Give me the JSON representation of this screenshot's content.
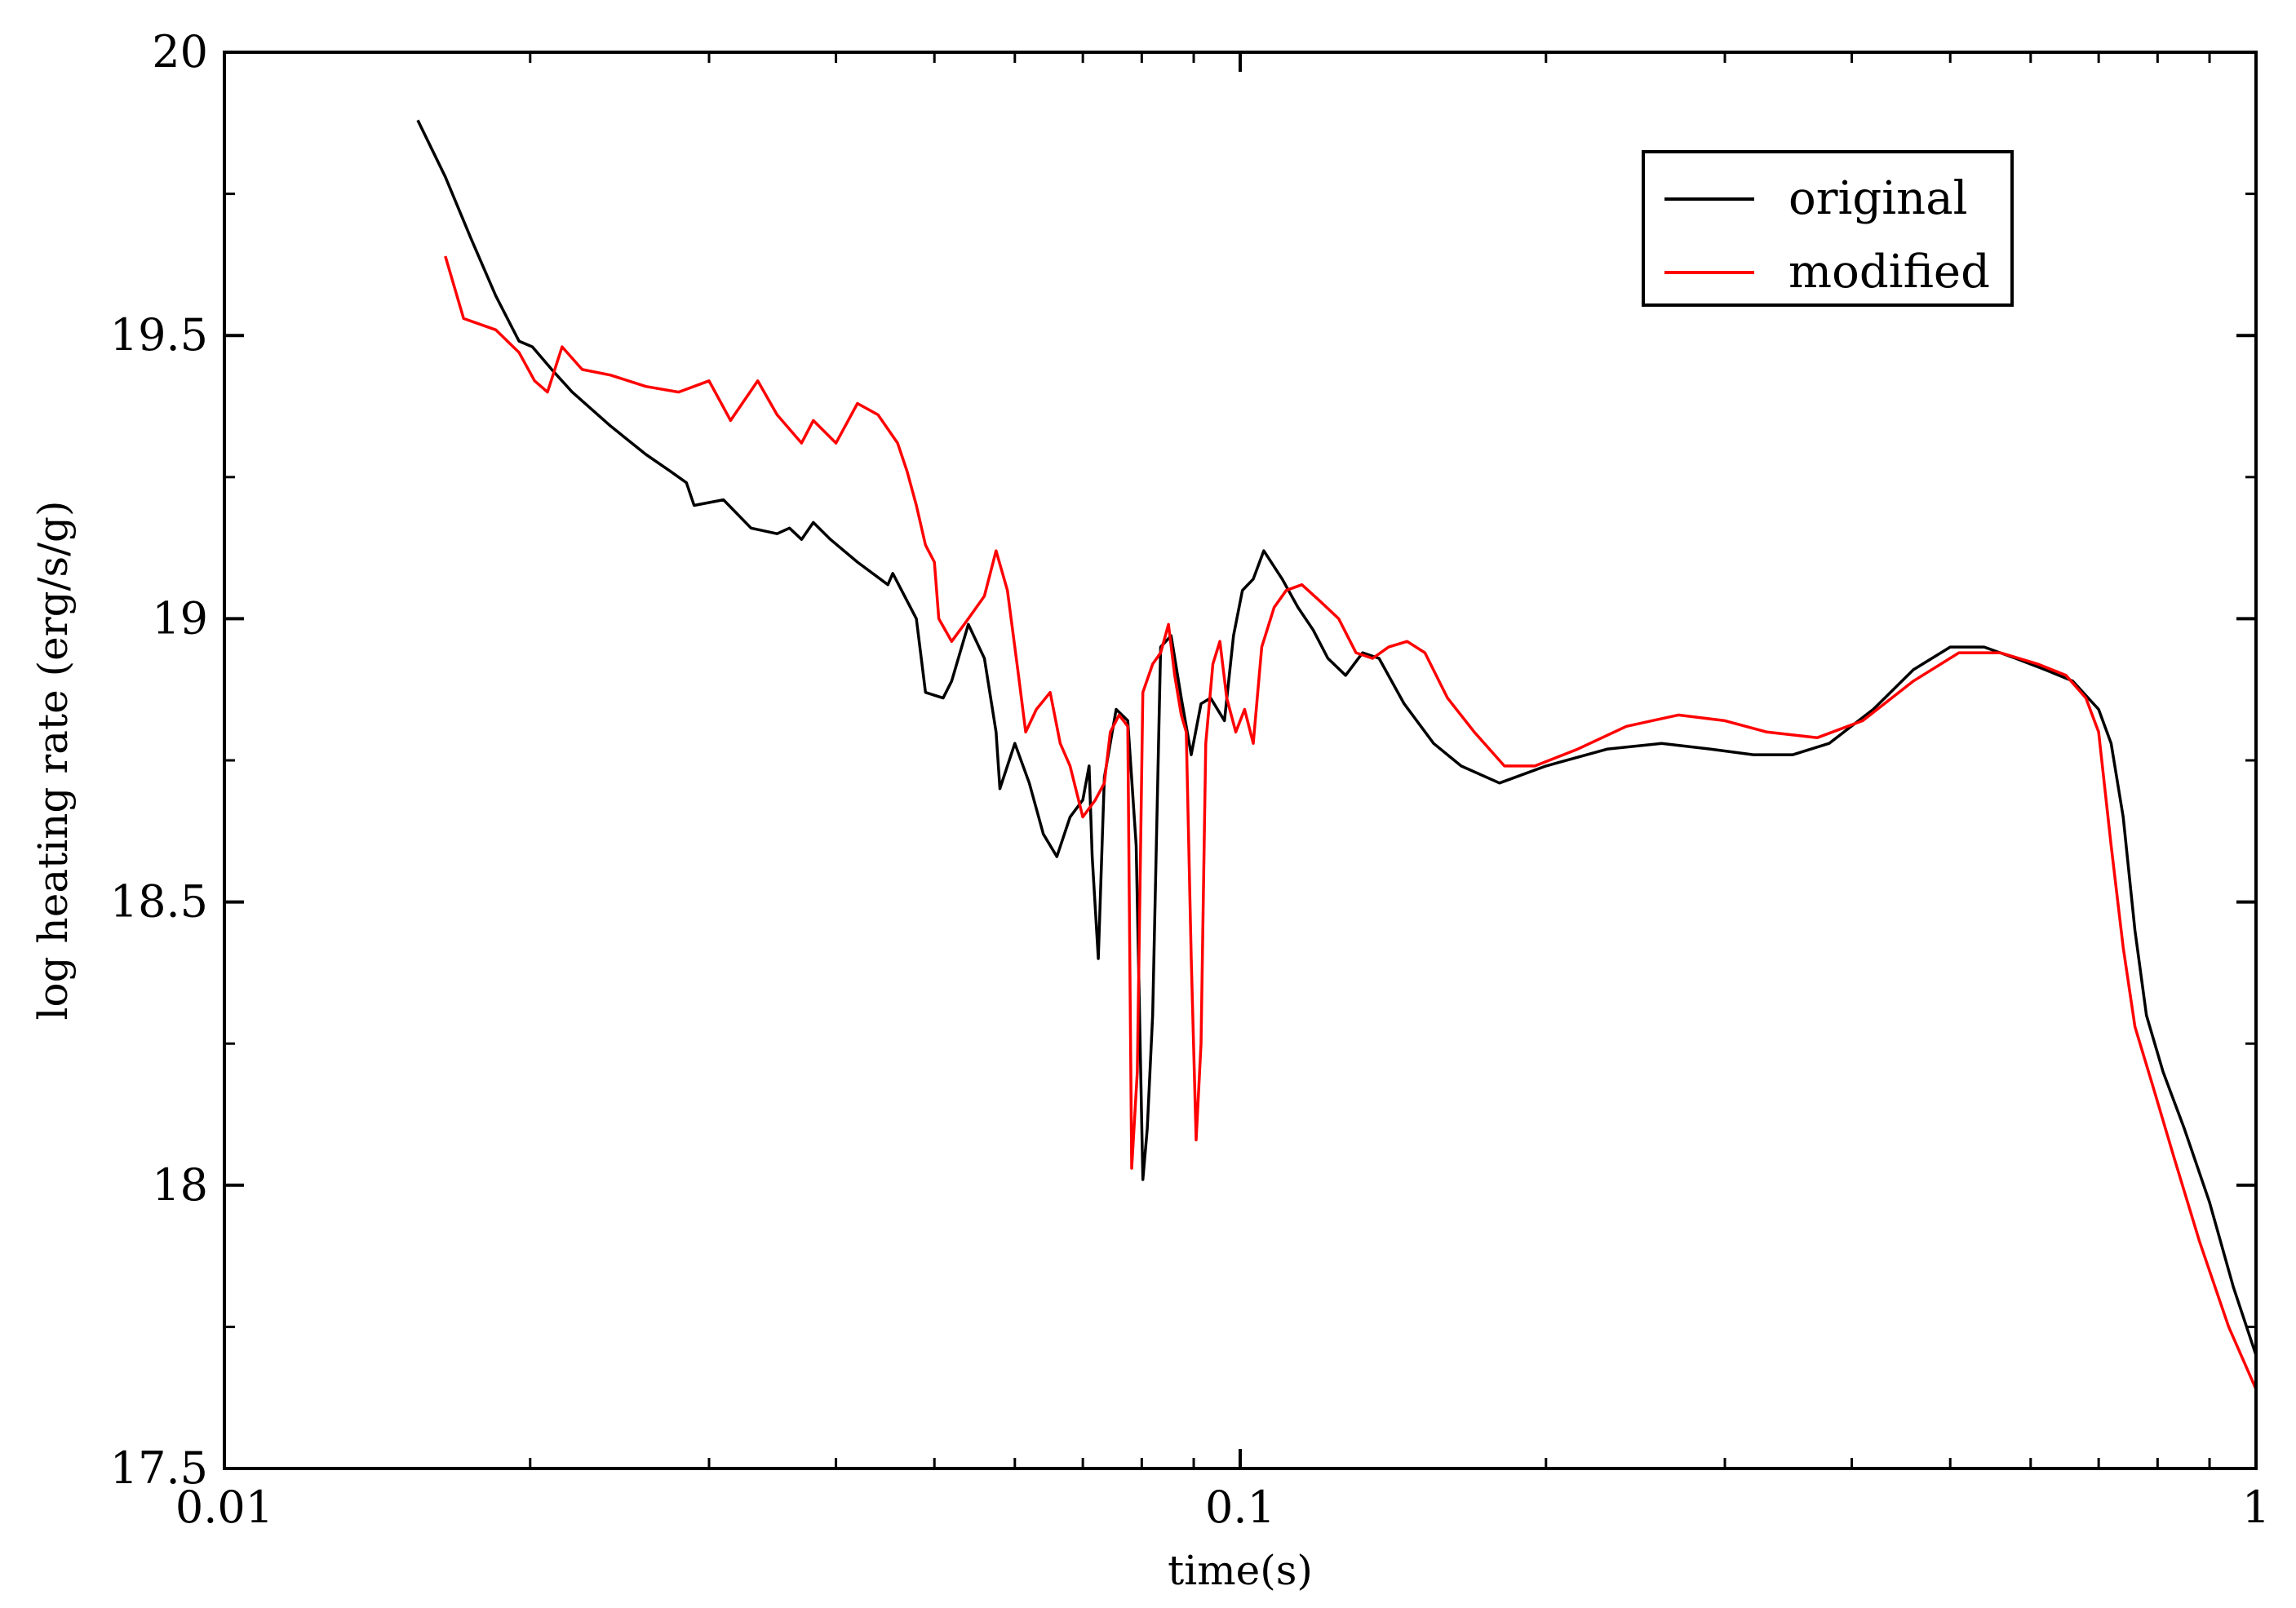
{
  "chart_data": {
    "type": "line",
    "xscale": "log",
    "xlim": [
      0.01,
      1
    ],
    "ylim": [
      17.5,
      20
    ],
    "grid": false,
    "legend_position": "top-right",
    "xlabel": "time(s)",
    "ylabel": "log heating rate  (erg/s/g)",
    "xticks": [
      {
        "value": 0.01,
        "label": "0.01"
      },
      {
        "value": 0.1,
        "label": "0.1"
      },
      {
        "value": 1,
        "label": "1"
      }
    ],
    "yticks": [
      {
        "value": 17.5,
        "label": "17.5"
      },
      {
        "value": 18,
        "label": "18"
      },
      {
        "value": 18.5,
        "label": "18.5"
      },
      {
        "value": 19,
        "label": "19"
      },
      {
        "value": 19.5,
        "label": "19.5"
      },
      {
        "value": 20,
        "label": "20"
      }
    ],
    "series": [
      {
        "name": "original",
        "color": "#000000",
        "points": [
          [
            0.0155,
            19.88
          ],
          [
            0.0165,
            19.78
          ],
          [
            0.0175,
            19.67
          ],
          [
            0.0185,
            19.57
          ],
          [
            0.0195,
            19.49
          ],
          [
            0.0201,
            19.48
          ],
          [
            0.021,
            19.44
          ],
          [
            0.022,
            19.4
          ],
          [
            0.024,
            19.34
          ],
          [
            0.026,
            19.29
          ],
          [
            0.0275,
            19.26
          ],
          [
            0.0285,
            19.24
          ],
          [
            0.029,
            19.2
          ],
          [
            0.031,
            19.21
          ],
          [
            0.033,
            19.16
          ],
          [
            0.035,
            19.15
          ],
          [
            0.036,
            19.16
          ],
          [
            0.037,
            19.14
          ],
          [
            0.038,
            19.17
          ],
          [
            0.0395,
            19.14
          ],
          [
            0.042,
            19.1
          ],
          [
            0.045,
            19.06
          ],
          [
            0.0455,
            19.08
          ],
          [
            0.048,
            19.0
          ],
          [
            0.049,
            18.87
          ],
          [
            0.051,
            18.86
          ],
          [
            0.052,
            18.89
          ],
          [
            0.054,
            18.99
          ],
          [
            0.056,
            18.93
          ],
          [
            0.0575,
            18.8
          ],
          [
            0.058,
            18.7
          ],
          [
            0.06,
            18.78
          ],
          [
            0.062,
            18.71
          ],
          [
            0.064,
            18.62
          ],
          [
            0.066,
            18.58
          ],
          [
            0.068,
            18.65
          ],
          [
            0.07,
            18.68
          ],
          [
            0.071,
            18.74
          ],
          [
            0.0715,
            18.58
          ],
          [
            0.0725,
            18.4
          ],
          [
            0.0735,
            18.72
          ],
          [
            0.0755,
            18.84
          ],
          [
            0.0775,
            18.82
          ],
          [
            0.079,
            18.6
          ],
          [
            0.0802,
            18.01
          ],
          [
            0.081,
            18.1
          ],
          [
            0.082,
            18.3
          ],
          [
            0.0835,
            18.95
          ],
          [
            0.0855,
            18.97
          ],
          [
            0.0875,
            18.86
          ],
          [
            0.0895,
            18.76
          ],
          [
            0.0915,
            18.85
          ],
          [
            0.0935,
            18.86
          ],
          [
            0.0965,
            18.82
          ],
          [
            0.0985,
            18.97
          ],
          [
            0.1005,
            19.05
          ],
          [
            0.103,
            19.07
          ],
          [
            0.1055,
            19.12
          ],
          [
            0.11,
            19.07
          ],
          [
            0.114,
            19.02
          ],
          [
            0.118,
            18.98
          ],
          [
            0.122,
            18.93
          ],
          [
            0.127,
            18.9
          ],
          [
            0.132,
            18.94
          ],
          [
            0.137,
            18.93
          ],
          [
            0.145,
            18.85
          ],
          [
            0.155,
            18.78
          ],
          [
            0.165,
            18.74
          ],
          [
            0.18,
            18.71
          ],
          [
            0.2,
            18.74
          ],
          [
            0.23,
            18.77
          ],
          [
            0.26,
            18.78
          ],
          [
            0.29,
            18.77
          ],
          [
            0.32,
            18.76
          ],
          [
            0.35,
            18.76
          ],
          [
            0.38,
            18.78
          ],
          [
            0.42,
            18.84
          ],
          [
            0.46,
            18.91
          ],
          [
            0.5,
            18.95
          ],
          [
            0.54,
            18.95
          ],
          [
            0.58,
            18.93
          ],
          [
            0.62,
            18.91
          ],
          [
            0.66,
            18.89
          ],
          [
            0.7,
            18.84
          ],
          [
            0.72,
            18.78
          ],
          [
            0.74,
            18.65
          ],
          [
            0.76,
            18.45
          ],
          [
            0.78,
            18.3
          ],
          [
            0.81,
            18.2
          ],
          [
            0.85,
            18.1
          ],
          [
            0.9,
            17.97
          ],
          [
            0.95,
            17.82
          ],
          [
            1.0,
            17.7
          ]
        ]
      },
      {
        "name": "modified",
        "color": "#ff0000",
        "points": [
          [
            0.0165,
            19.64
          ],
          [
            0.0172,
            19.53
          ],
          [
            0.0185,
            19.51
          ],
          [
            0.0195,
            19.47
          ],
          [
            0.0202,
            19.42
          ],
          [
            0.0208,
            19.4
          ],
          [
            0.0215,
            19.48
          ],
          [
            0.0225,
            19.44
          ],
          [
            0.024,
            19.43
          ],
          [
            0.026,
            19.41
          ],
          [
            0.028,
            19.4
          ],
          [
            0.03,
            19.42
          ],
          [
            0.0315,
            19.35
          ],
          [
            0.0335,
            19.42
          ],
          [
            0.035,
            19.36
          ],
          [
            0.037,
            19.31
          ],
          [
            0.038,
            19.35
          ],
          [
            0.04,
            19.31
          ],
          [
            0.042,
            19.38
          ],
          [
            0.044,
            19.36
          ],
          [
            0.046,
            19.31
          ],
          [
            0.047,
            19.26
          ],
          [
            0.048,
            19.2
          ],
          [
            0.049,
            19.13
          ],
          [
            0.05,
            19.1
          ],
          [
            0.0505,
            19.0
          ],
          [
            0.052,
            18.96
          ],
          [
            0.054,
            19.0
          ],
          [
            0.056,
            19.04
          ],
          [
            0.0575,
            19.12
          ],
          [
            0.059,
            19.05
          ],
          [
            0.0605,
            18.9
          ],
          [
            0.0615,
            18.8
          ],
          [
            0.063,
            18.84
          ],
          [
            0.065,
            18.87
          ],
          [
            0.0665,
            18.78
          ],
          [
            0.068,
            18.74
          ],
          [
            0.07,
            18.65
          ],
          [
            0.072,
            18.68
          ],
          [
            0.0735,
            18.71
          ],
          [
            0.0745,
            18.8
          ],
          [
            0.076,
            18.83
          ],
          [
            0.0775,
            18.81
          ],
          [
            0.0782,
            18.03
          ],
          [
            0.0792,
            18.2
          ],
          [
            0.0802,
            18.87
          ],
          [
            0.082,
            18.92
          ],
          [
            0.0835,
            18.94
          ],
          [
            0.085,
            18.99
          ],
          [
            0.0862,
            18.9
          ],
          [
            0.0875,
            18.83
          ],
          [
            0.0885,
            18.8
          ],
          [
            0.0895,
            18.4
          ],
          [
            0.0905,
            18.08
          ],
          [
            0.0915,
            18.25
          ],
          [
            0.0925,
            18.78
          ],
          [
            0.094,
            18.92
          ],
          [
            0.0955,
            18.96
          ],
          [
            0.097,
            18.86
          ],
          [
            0.099,
            18.8
          ],
          [
            0.101,
            18.84
          ],
          [
            0.103,
            18.78
          ],
          [
            0.105,
            18.95
          ],
          [
            0.108,
            19.02
          ],
          [
            0.111,
            19.05
          ],
          [
            0.115,
            19.06
          ],
          [
            0.12,
            19.03
          ],
          [
            0.125,
            19.0
          ],
          [
            0.13,
            18.94
          ],
          [
            0.135,
            18.93
          ],
          [
            0.14,
            18.95
          ],
          [
            0.146,
            18.96
          ],
          [
            0.152,
            18.94
          ],
          [
            0.16,
            18.86
          ],
          [
            0.17,
            18.8
          ],
          [
            0.182,
            18.74
          ],
          [
            0.195,
            18.74
          ],
          [
            0.215,
            18.77
          ],
          [
            0.24,
            18.81
          ],
          [
            0.27,
            18.83
          ],
          [
            0.3,
            18.82
          ],
          [
            0.33,
            18.8
          ],
          [
            0.37,
            18.79
          ],
          [
            0.41,
            18.82
          ],
          [
            0.46,
            18.89
          ],
          [
            0.51,
            18.94
          ],
          [
            0.56,
            18.94
          ],
          [
            0.61,
            18.92
          ],
          [
            0.65,
            18.9
          ],
          [
            0.68,
            18.86
          ],
          [
            0.7,
            18.8
          ],
          [
            0.72,
            18.6
          ],
          [
            0.74,
            18.42
          ],
          [
            0.76,
            18.28
          ],
          [
            0.79,
            18.18
          ],
          [
            0.83,
            18.05
          ],
          [
            0.88,
            17.9
          ],
          [
            0.94,
            17.75
          ],
          [
            1.0,
            17.64
          ]
        ]
      }
    ]
  }
}
